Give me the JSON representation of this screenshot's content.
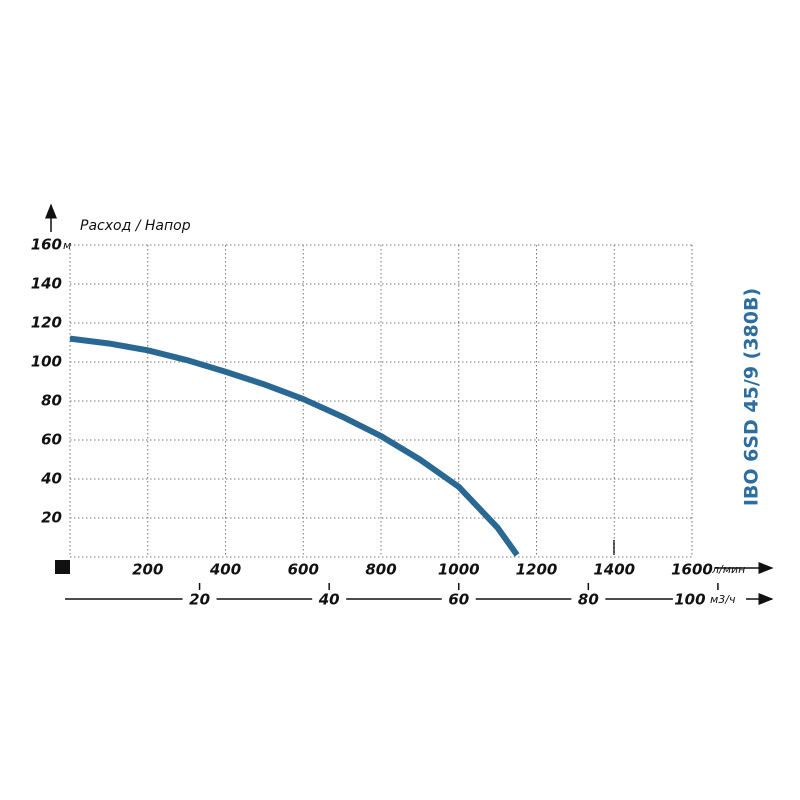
{
  "chart_data": {
    "type": "line",
    "title": "Расход / Напор",
    "side_label": "IBO 6SD 45/9 (380B)",
    "x": [
      0,
      100,
      200,
      300,
      400,
      500,
      600,
      700,
      800,
      900,
      1000,
      1100,
      1150
    ],
    "series": [
      {
        "name": "IBO 6SD 45/9 (380B)",
        "color": "#2a6894",
        "values": [
          112,
          109.5,
          106,
          101,
          95,
          88.5,
          81,
          72,
          62,
          50,
          36,
          15,
          1
        ]
      }
    ],
    "xlim": [
      0,
      1600
    ],
    "xticks": [
      200,
      400,
      600,
      800,
      1000,
      1200,
      1400,
      1600
    ],
    "x_unit": "л/мин",
    "ylim": [
      0,
      160
    ],
    "yticks": [
      20,
      40,
      60,
      80,
      100,
      120,
      140,
      160
    ],
    "y_unit": "м",
    "x2lim": [
      0,
      96
    ],
    "x2ticks": [
      20,
      40,
      60,
      80,
      100
    ],
    "x2_unit": "м3/ч",
    "grid": true
  }
}
